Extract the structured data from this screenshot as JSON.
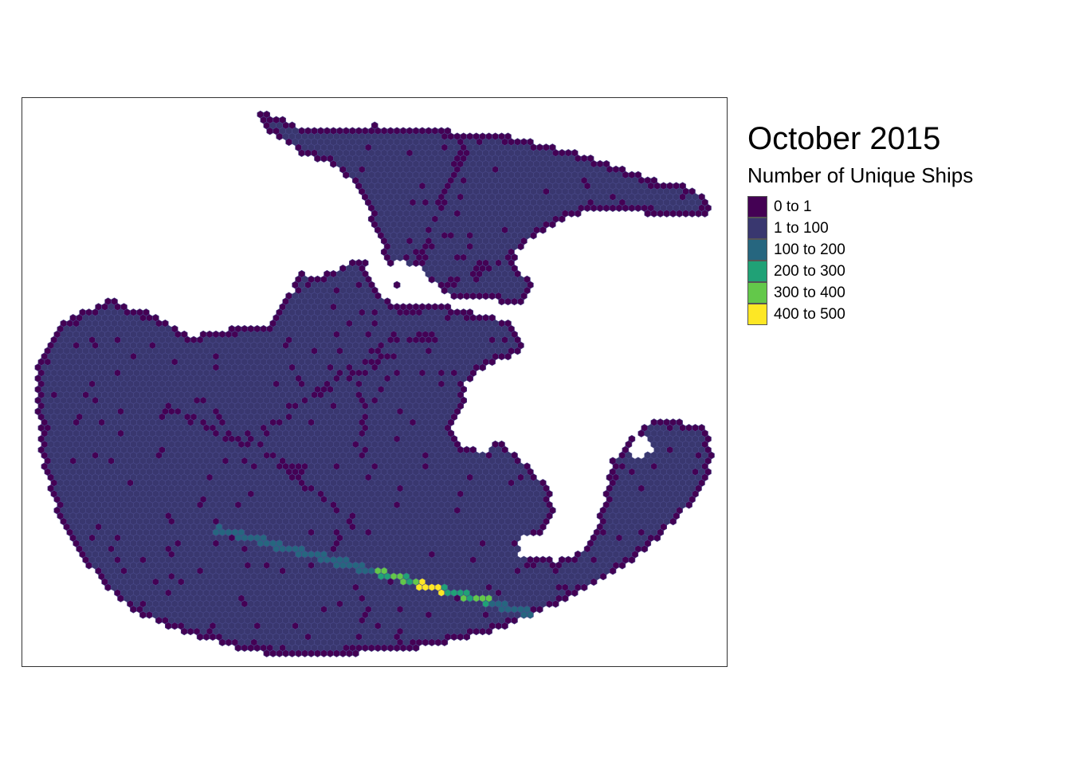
{
  "title": "October 2015",
  "legend": {
    "title": "Number of Unique Ships",
    "classes": [
      {
        "label": "0 to 1",
        "color": "#440154"
      },
      {
        "label": "1 to 100",
        "color": "#39376f"
      },
      {
        "label": "100 to 200",
        "color": "#26667f"
      },
      {
        "label": "200 to 300",
        "color": "#20a176"
      },
      {
        "label": "300 to 400",
        "color": "#63c84a"
      },
      {
        "label": "400 to 500",
        "color": "#fde725"
      }
    ]
  },
  "map": {
    "type": "hexbin",
    "hex_outline_color": "#4a4a8a",
    "dominant_class": "1 to 100",
    "high_traffic_lane": "diagonal shipping lane across southern basin with values up to 400 to 500"
  }
}
